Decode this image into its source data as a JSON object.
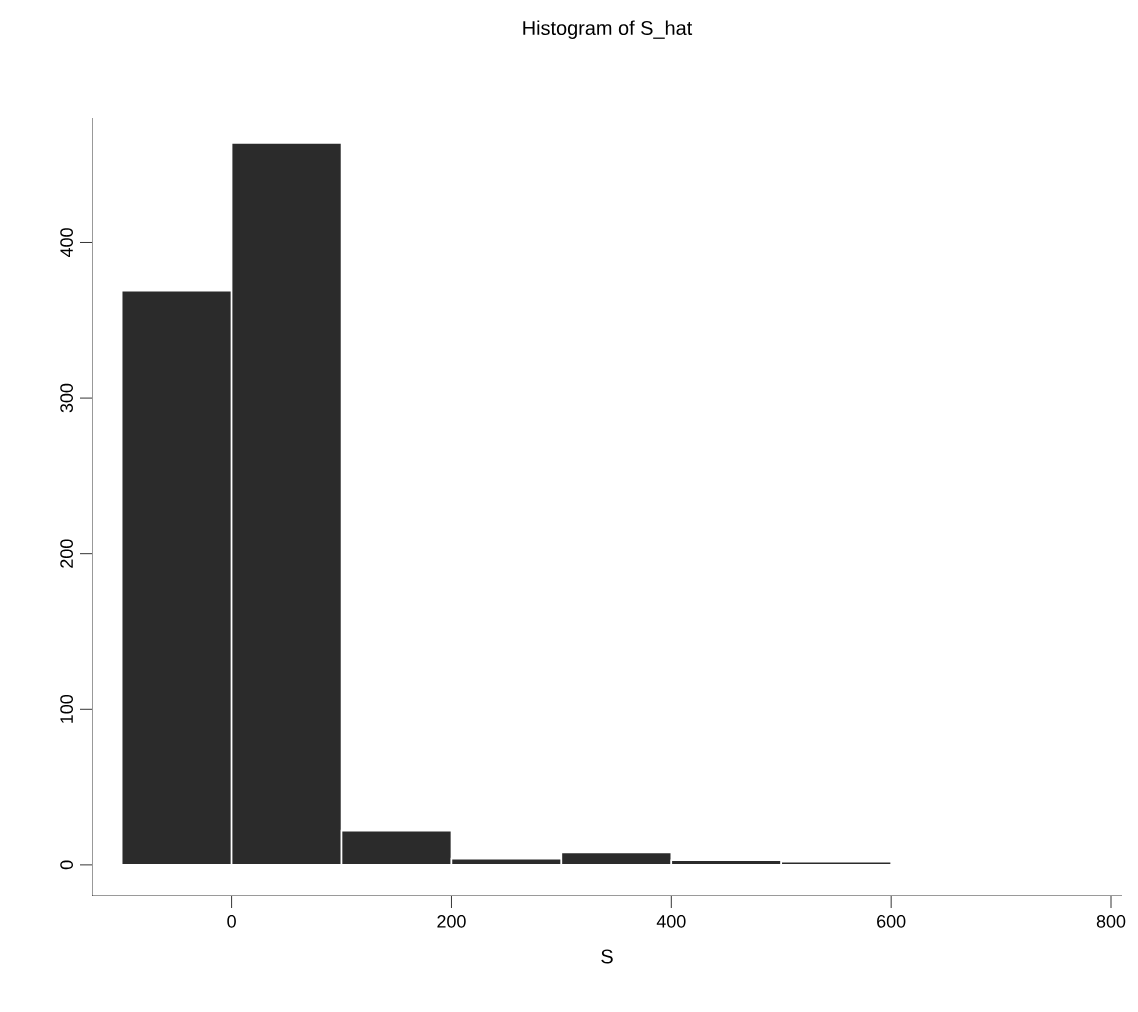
{
  "chart_data": {
    "type": "histogram",
    "title": "Histogram of S_hat",
    "xlabel": "S",
    "bins": [
      -100,
      0,
      100,
      200,
      300,
      400,
      500,
      600
    ],
    "values": [
      369,
      464,
      22,
      4,
      8,
      3,
      2
    ],
    "color": "#2b2b2b",
    "xlim": [
      -127,
      810
    ],
    "ylim": [
      -20,
      480
    ],
    "xticks": [
      0,
      200,
      400,
      600,
      800
    ],
    "yticks": [
      0,
      100,
      200,
      300,
      400
    ],
    "grid": false
  }
}
